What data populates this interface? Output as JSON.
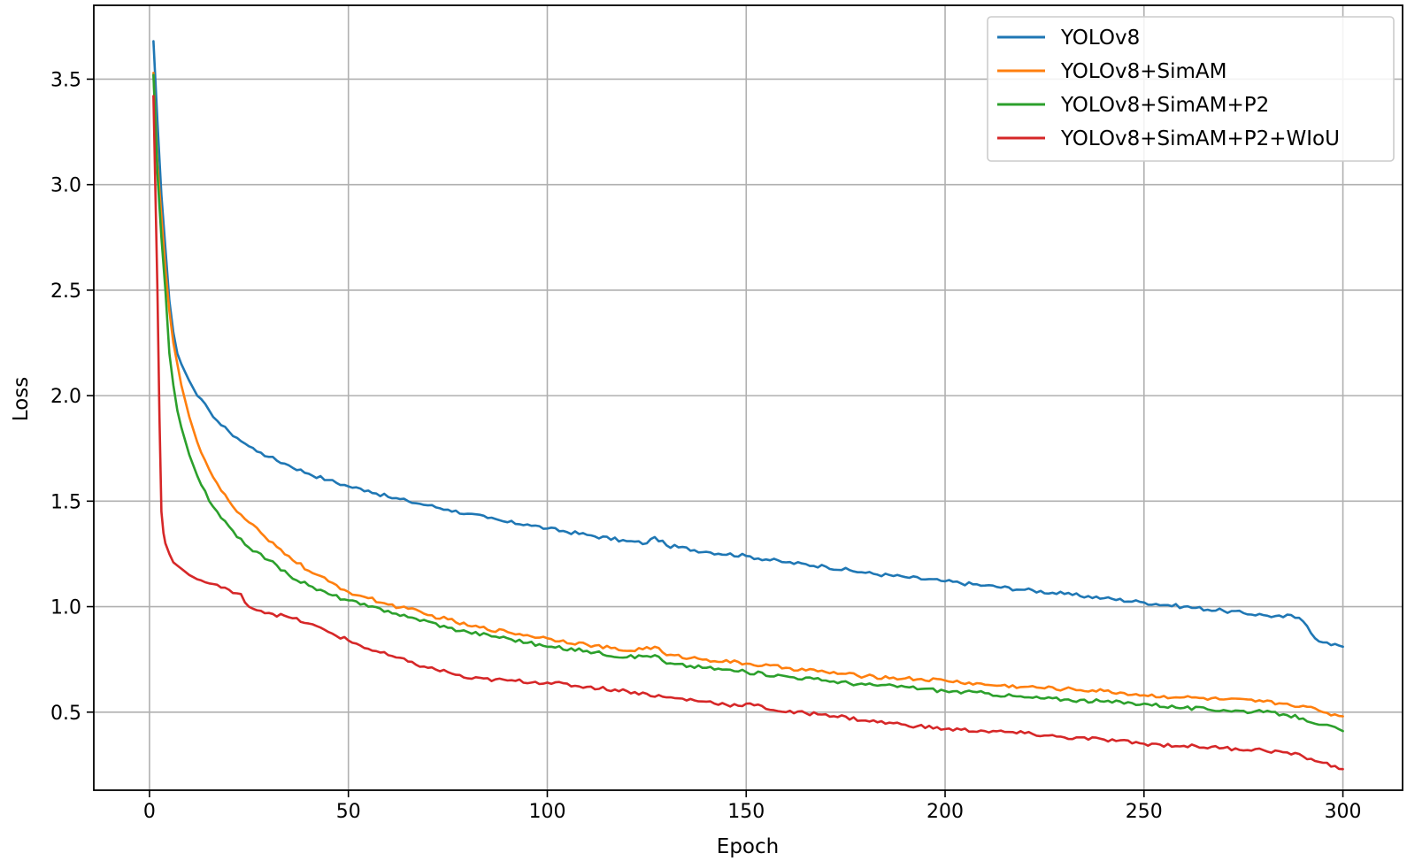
{
  "chart_data": {
    "type": "line",
    "title": "",
    "xlabel": "Epoch",
    "ylabel": "Loss",
    "xlim": [
      -14,
      315
    ],
    "ylim": [
      0.13,
      3.85
    ],
    "xticks": [
      0,
      50,
      100,
      150,
      200,
      250,
      300
    ],
    "yticks": [
      0.5,
      1.0,
      1.5,
      2.0,
      2.5,
      3.0,
      3.5
    ],
    "xtick_labels": [
      "0",
      "50",
      "100",
      "150",
      "200",
      "250",
      "300"
    ],
    "ytick_labels": [
      "0.5",
      "1.0",
      "1.5",
      "2.0",
      "2.5",
      "3.0",
      "3.5"
    ],
    "grid": true,
    "legend_position": "top-right",
    "series": [
      {
        "name": "YOLOv8",
        "color": "#1f77b4",
        "x": [
          1,
          2,
          3,
          4,
          5,
          6,
          7,
          8,
          10,
          12,
          15,
          18,
          20,
          22,
          25,
          28,
          30,
          35,
          40,
          45,
          50,
          55,
          60,
          65,
          70,
          75,
          80,
          85,
          90,
          95,
          100,
          110,
          120,
          125,
          127,
          130,
          140,
          150,
          160,
          170,
          180,
          190,
          200,
          210,
          220,
          230,
          240,
          250,
          260,
          270,
          280,
          285,
          287,
          290,
          293,
          296,
          300
        ],
        "values": [
          3.68,
          3.3,
          2.95,
          2.7,
          2.45,
          2.3,
          2.2,
          2.15,
          2.07,
          2.0,
          1.93,
          1.86,
          1.83,
          1.8,
          1.76,
          1.73,
          1.71,
          1.67,
          1.63,
          1.6,
          1.57,
          1.55,
          1.52,
          1.5,
          1.48,
          1.46,
          1.44,
          1.42,
          1.4,
          1.39,
          1.37,
          1.34,
          1.31,
          1.3,
          1.33,
          1.29,
          1.26,
          1.24,
          1.21,
          1.19,
          1.16,
          1.14,
          1.12,
          1.1,
          1.08,
          1.06,
          1.04,
          1.02,
          1.0,
          0.98,
          0.96,
          0.95,
          0.96,
          0.93,
          0.85,
          0.83,
          0.81
        ]
      },
      {
        "name": "YOLOv8+SimAM",
        "color": "#ff7f0e",
        "x": [
          1,
          2,
          3,
          4,
          5,
          6,
          7,
          8,
          10,
          12,
          15,
          18,
          20,
          22,
          25,
          28,
          30,
          35,
          40,
          45,
          50,
          55,
          60,
          65,
          70,
          75,
          80,
          90,
          100,
          110,
          120,
          127,
          130,
          140,
          150,
          160,
          170,
          180,
          190,
          200,
          210,
          220,
          230,
          240,
          250,
          260,
          270,
          280,
          285,
          290,
          295,
          300
        ],
        "values": [
          3.53,
          3.1,
          2.85,
          2.6,
          2.4,
          2.25,
          2.15,
          2.05,
          1.9,
          1.78,
          1.65,
          1.55,
          1.5,
          1.45,
          1.4,
          1.35,
          1.31,
          1.24,
          1.17,
          1.12,
          1.07,
          1.04,
          1.01,
          0.99,
          0.96,
          0.94,
          0.91,
          0.88,
          0.85,
          0.82,
          0.79,
          0.81,
          0.77,
          0.75,
          0.73,
          0.71,
          0.69,
          0.67,
          0.66,
          0.65,
          0.63,
          0.62,
          0.61,
          0.6,
          0.58,
          0.57,
          0.56,
          0.55,
          0.54,
          0.53,
          0.5,
          0.48
        ]
      },
      {
        "name": "YOLOv8+SimAM+P2",
        "color": "#2ca02c",
        "x": [
          1,
          2,
          3,
          4,
          5,
          6,
          7,
          8,
          10,
          12,
          15,
          18,
          20,
          22,
          25,
          28,
          30,
          35,
          40,
          45,
          50,
          55,
          60,
          65,
          70,
          75,
          80,
          90,
          100,
          110,
          120,
          127,
          130,
          140,
          150,
          160,
          170,
          180,
          190,
          200,
          210,
          220,
          230,
          240,
          250,
          260,
          270,
          280,
          285,
          290,
          295,
          300
        ],
        "values": [
          3.52,
          3.05,
          2.75,
          2.5,
          2.2,
          2.05,
          1.93,
          1.85,
          1.72,
          1.62,
          1.5,
          1.42,
          1.38,
          1.33,
          1.28,
          1.25,
          1.22,
          1.15,
          1.1,
          1.06,
          1.03,
          1.0,
          0.98,
          0.95,
          0.93,
          0.9,
          0.88,
          0.85,
          0.81,
          0.79,
          0.76,
          0.77,
          0.73,
          0.71,
          0.69,
          0.67,
          0.65,
          0.63,
          0.62,
          0.6,
          0.59,
          0.57,
          0.56,
          0.55,
          0.54,
          0.52,
          0.51,
          0.5,
          0.49,
          0.47,
          0.44,
          0.41
        ]
      },
      {
        "name": "YOLOv8+SimAM+P2+WIoU",
        "color": "#d62728",
        "x": [
          1,
          2,
          2.5,
          3,
          3.5,
          4,
          5,
          6,
          8,
          10,
          12,
          15,
          18,
          20,
          23,
          24,
          25,
          28,
          30,
          35,
          40,
          45,
          50,
          55,
          60,
          65,
          70,
          75,
          80,
          90,
          100,
          110,
          120,
          130,
          140,
          148,
          150,
          160,
          170,
          180,
          190,
          200,
          210,
          220,
          230,
          240,
          250,
          260,
          270,
          280,
          285,
          290,
          295,
          300
        ],
        "values": [
          3.42,
          2.5,
          1.9,
          1.45,
          1.35,
          1.3,
          1.25,
          1.21,
          1.18,
          1.15,
          1.13,
          1.11,
          1.09,
          1.08,
          1.06,
          1.02,
          1.0,
          0.98,
          0.97,
          0.95,
          0.92,
          0.88,
          0.84,
          0.8,
          0.77,
          0.74,
          0.71,
          0.69,
          0.66,
          0.65,
          0.64,
          0.62,
          0.6,
          0.57,
          0.55,
          0.53,
          0.54,
          0.5,
          0.49,
          0.46,
          0.44,
          0.42,
          0.41,
          0.4,
          0.38,
          0.37,
          0.35,
          0.34,
          0.33,
          0.32,
          0.31,
          0.29,
          0.26,
          0.23
        ]
      }
    ]
  }
}
